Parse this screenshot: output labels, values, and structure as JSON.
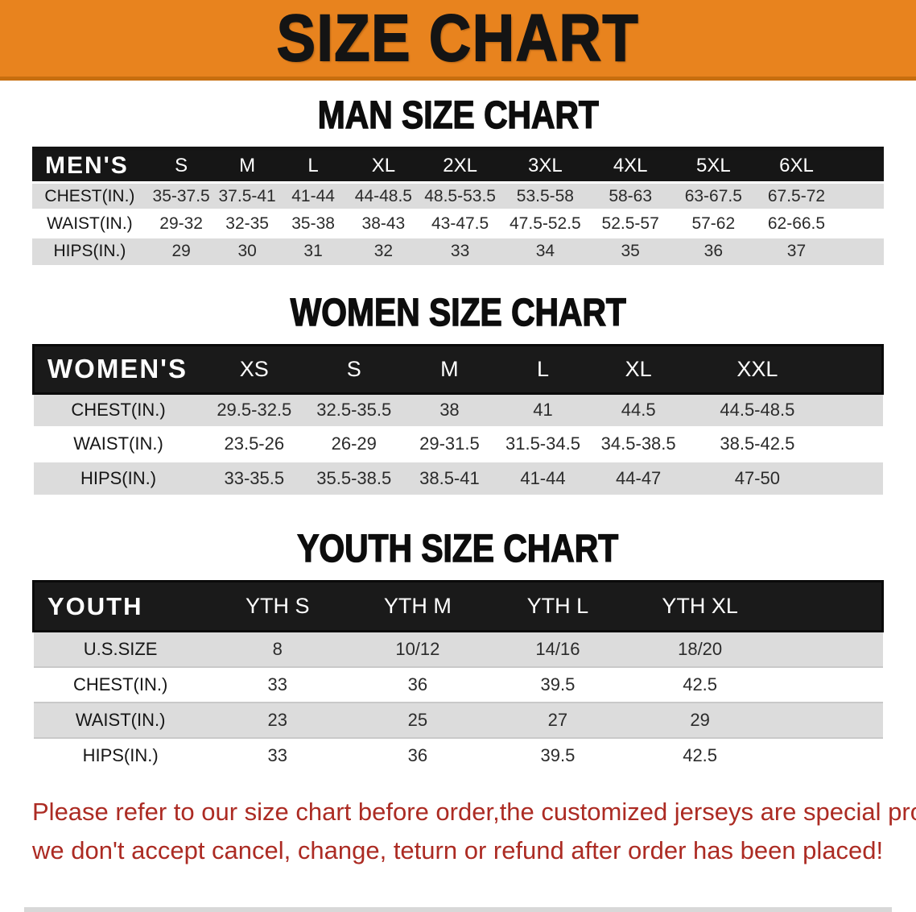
{
  "banner": {
    "title": "SIZE CHART",
    "bg_color": "#E8831E",
    "text_color": "#141414"
  },
  "colors": {
    "header_bar": "#161616",
    "row_alt_gray": "#DCDCDC",
    "row_white": "#FFFFFF",
    "note_red": "#AC2B23"
  },
  "sections": [
    {
      "heading": "MAN SIZE CHART",
      "table": {
        "corner_label": "MEN'S",
        "columns": [
          "S",
          "M",
          "L",
          "XL",
          "2XL",
          "3XL",
          "4XL",
          "5XL",
          "6XL"
        ],
        "rows": [
          {
            "label": "CHEST(IN.)",
            "values": [
              "35-37.5",
              "37.5-41",
              "41-44",
              "44-48.5",
              "48.5-53.5",
              "53.5-58",
              "58-63",
              "63-67.5",
              "67.5-72"
            ]
          },
          {
            "label": "WAIST(IN.)",
            "values": [
              "29-32",
              "32-35",
              "35-38",
              "38-43",
              "43-47.5",
              "47.5-52.5",
              "52.5-57",
              "57-62",
              "62-66.5"
            ]
          },
          {
            "label": "HIPS(IN.)",
            "values": [
              "29",
              "30",
              "31",
              "32",
              "33",
              "34",
              "35",
              "36",
              "37"
            ]
          }
        ]
      }
    },
    {
      "heading": "WOMEN SIZE CHART",
      "table": {
        "corner_label": "WOMEN'S",
        "columns": [
          "XS",
          "S",
          "M",
          "L",
          "XL",
          "XXL"
        ],
        "rows": [
          {
            "label": "CHEST(IN.)",
            "values": [
              "29.5-32.5",
              "32.5-35.5",
              "38",
              "41",
              "44.5",
              "44.5-48.5"
            ]
          },
          {
            "label": "WAIST(IN.)",
            "values": [
              "23.5-26",
              "26-29",
              "29-31.5",
              "31.5-34.5",
              "34.5-38.5",
              "38.5-42.5"
            ]
          },
          {
            "label": "HIPS(IN.)",
            "values": [
              "33-35.5",
              "35.5-38.5",
              "38.5-41",
              "41-44",
              "44-47",
              "47-50"
            ]
          }
        ]
      }
    },
    {
      "heading": "YOUTH SIZE CHART",
      "table": {
        "corner_label": "YOUTH",
        "columns": [
          "YTH S",
          "YTH M",
          "YTH L",
          "YTH XL"
        ],
        "rows": [
          {
            "label": "U.S.SIZE",
            "values": [
              "8",
              "10/12",
              "14/16",
              "18/20"
            ]
          },
          {
            "label": "CHEST(IN.)",
            "values": [
              "33",
              "36",
              "39.5",
              "42.5"
            ]
          },
          {
            "label": "WAIST(IN.)",
            "values": [
              "23",
              "25",
              "27",
              "29"
            ]
          },
          {
            "label": "HIPS(IN.)",
            "values": [
              "33",
              "36",
              "39.5",
              "42.5"
            ]
          }
        ]
      }
    }
  ],
  "footer_note": {
    "line1": "Please refer to our size chart before order,the customized jerseys are special products,",
    "line2": "we don't accept cancel, change, teturn or refund after order has been placed!"
  }
}
